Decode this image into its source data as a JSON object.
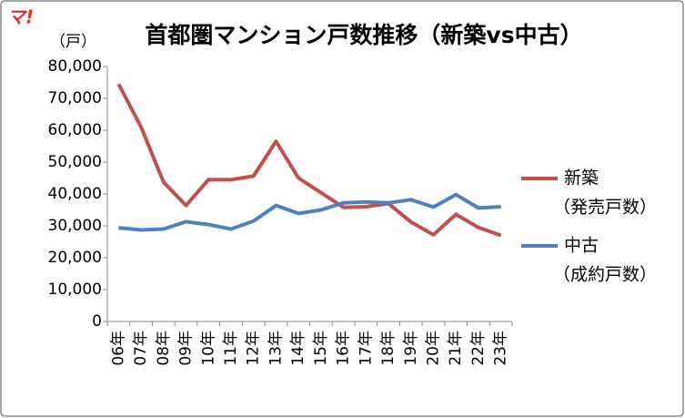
{
  "logo": "マ!",
  "chart_data": {
    "type": "line",
    "title": "首都圏マンション戸数推移（新築vs中古）",
    "y_unit": "（戸）",
    "categories": [
      "06年",
      "07年",
      "08年",
      "09年",
      "10年",
      "11年",
      "12年",
      "13年",
      "14年",
      "15年",
      "16年",
      "17年",
      "18年",
      "19年",
      "20年",
      "21年",
      "22年",
      "23年"
    ],
    "series": [
      {
        "name": "新築",
        "subname": "（発売戸数）",
        "color": "#c0504d",
        "values": [
          74500,
          61000,
          43700,
          36400,
          44500,
          44500,
          45600,
          56500,
          45000,
          40400,
          35800,
          36000,
          37000,
          31200,
          27200,
          33600,
          29500,
          27000
        ]
      },
      {
        "name": "中古",
        "subname": "（成約戸数）",
        "color": "#4f81bd",
        "values": [
          29400,
          28700,
          29000,
          31300,
          30400,
          29000,
          31500,
          36400,
          33900,
          35000,
          37200,
          37500,
          37200,
          38200,
          35900,
          39800,
          35600,
          36000
        ]
      }
    ],
    "ylim": [
      0,
      80000
    ],
    "yticks": [
      0,
      {
        "value": 10000,
        "label": "10,000"
      },
      {
        "value": 20000,
        "label": "20,000"
      },
      {
        "value": 30000,
        "label": "30,000"
      },
      {
        "value": 40000,
        "label": "40,000"
      },
      {
        "value": 50000,
        "label": "50,000"
      },
      {
        "value": 60000,
        "label": "60,000"
      },
      {
        "value": 70000,
        "label": "70,000"
      },
      {
        "value": 80000,
        "label": "80,000"
      }
    ],
    "grid": false,
    "legend": "right"
  }
}
